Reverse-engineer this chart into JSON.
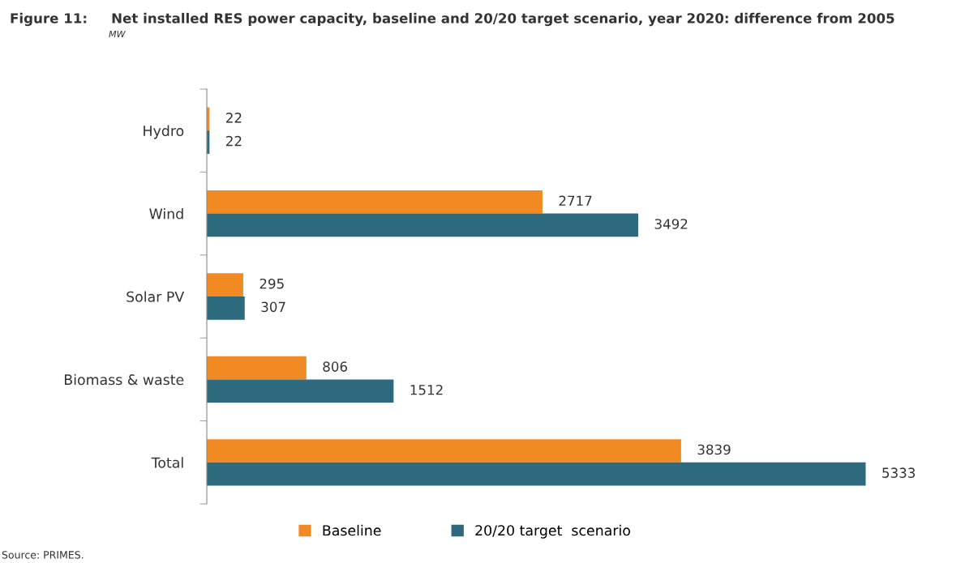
{
  "chart_data": {
    "type": "bar",
    "orientation": "horizontal",
    "title": "Figure 11:     Net installed RES power capacity, baseline and 20/20 target scenario, year 2020: difference from 2005",
    "subtitle": "MW",
    "categories": [
      "Hydro",
      "Wind",
      "Solar PV",
      "Biomass & waste",
      "Total"
    ],
    "series": [
      {
        "name": "Baseline",
        "color": "#f28a24",
        "values": [
          22,
          2717,
          295,
          806,
          3839
        ]
      },
      {
        "name": "20/20 target  scenario",
        "color": "#2e6a7e",
        "values": [
          22,
          3492,
          307,
          1512,
          5333
        ]
      }
    ],
    "tick_labels": "y",
    "data_labels": true,
    "grid": false,
    "legend": "bottom",
    "annotations": [
      "Source: PRIMES."
    ]
  }
}
